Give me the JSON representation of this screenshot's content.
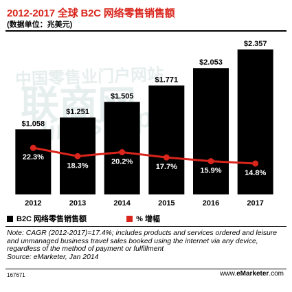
{
  "title": "2012-2017 全球 B2C 网络零售销售额",
  "subtitle": "(数据单位：兆美元)",
  "legend": {
    "bar_label": "B2C 网络零售销售额",
    "line_label": "% 增幅"
  },
  "note": "Note: CAGR (2012-2017)=17.4%; includes products and services ordered and leisure and unmanaged business travel sales booked using the internet via any device, regardless of the method of payment or fulfillment",
  "source": "Source: eMarketer, Jan 2014",
  "footer_id": "167671",
  "footer_brand": "www.",
  "footer_brand_bold": "eMarketer",
  "footer_brand_end": ".com",
  "watermark": {
    "line1": "中国零售业门户网站",
    "line2": "联商网",
    "line3": "linkshop"
  },
  "colors": {
    "bar": "#000000",
    "line": "#d9251c",
    "title": "#d9251c"
  },
  "chart_data": {
    "type": "bar",
    "categories": [
      "2012",
      "2013",
      "2014",
      "2015",
      "2016",
      "2017"
    ],
    "bar_labels": [
      "$1.058",
      "$1.251",
      "$1.505",
      "$1.771",
      "$2.053",
      "$2.357"
    ],
    "line_labels": [
      "22.3%",
      "18.3%",
      "20.2%",
      "17.7%",
      "15.9%",
      "14.8%"
    ],
    "series": [
      {
        "name": "B2C 网络零售销售额",
        "type": "bar",
        "values": [
          1.058,
          1.251,
          1.505,
          1.771,
          2.053,
          2.357
        ]
      },
      {
        "name": "% 增幅",
        "type": "line",
        "values": [
          22.3,
          18.3,
          20.2,
          17.7,
          15.9,
          14.8
        ]
      }
    ],
    "xlabel": "",
    "ylabel": "",
    "ylim": [
      0,
      2.357
    ],
    "line_ylim": [
      0,
      70
    ],
    "grid": false,
    "legend_position": "bottom-left"
  }
}
